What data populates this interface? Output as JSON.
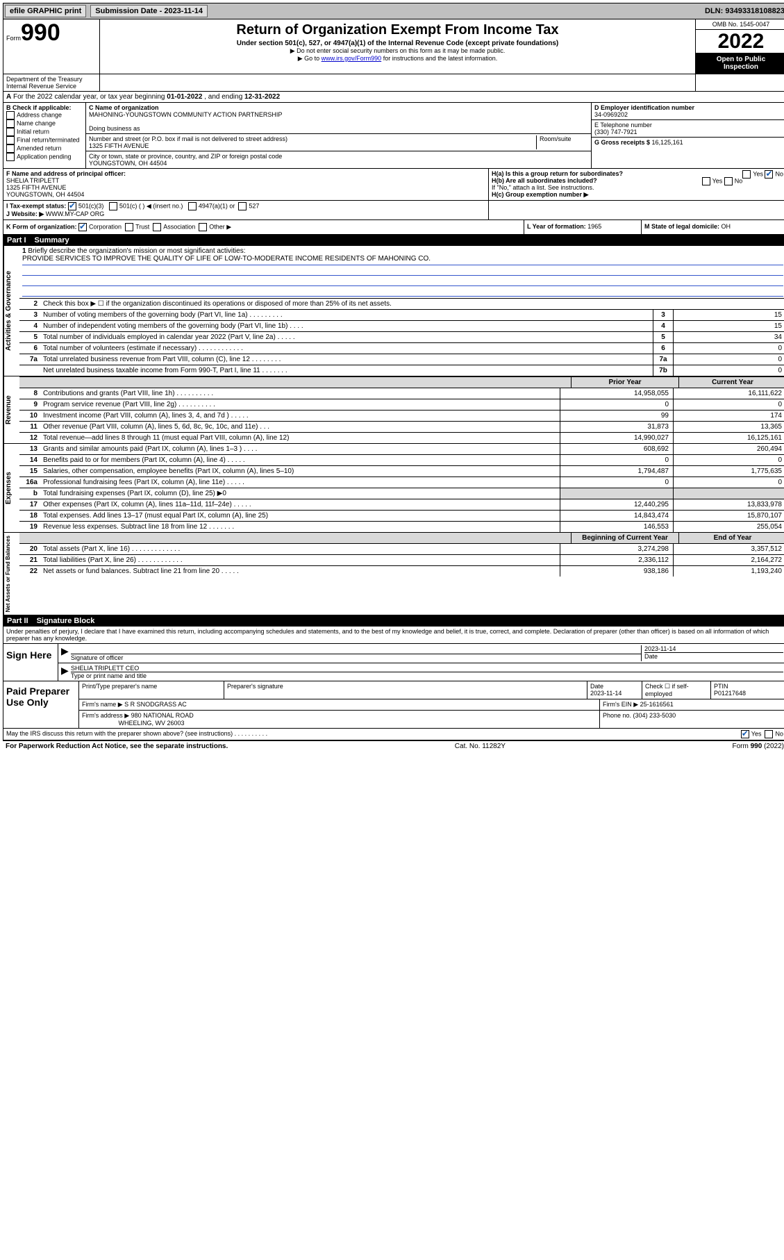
{
  "topbar": {
    "efile": "efile GRAPHIC print",
    "submission_label": "Submission Date - ",
    "submission_date": "2023-11-14",
    "dln_label": "DLN: ",
    "dln": "93493318108823"
  },
  "header": {
    "form_word": "Form",
    "form_number": "990",
    "title": "Return of Organization Exempt From Income Tax",
    "subtitle": "Under section 501(c), 527, or 4947(a)(1) of the Internal Revenue Code (except private foundations)",
    "note1": "▶ Do not enter social security numbers on this form as it may be made public.",
    "note2_pre": "▶ Go to ",
    "note2_link": "www.irs.gov/Form990",
    "note2_post": " for instructions and the latest information.",
    "omb": "OMB No. 1545-0047",
    "year": "2022",
    "open_public": "Open to Public Inspection",
    "dept": "Department of the Treasury",
    "irs": "Internal Revenue Service"
  },
  "section_a": {
    "label": "A",
    "text_pre": "For the 2022 calendar year, or tax year beginning ",
    "date1": "01-01-2022",
    "text_mid": ", and ending ",
    "date2": "12-31-2022"
  },
  "section_b": {
    "label": "B Check if applicable:",
    "items": [
      "Address change",
      "Name change",
      "Initial return",
      "Final return/terminated",
      "Amended return",
      "Application pending"
    ]
  },
  "section_c": {
    "name_label": "C Name of organization",
    "name": "MAHONING-YOUNGSTOWN COMMUNITY ACTION PARTNERSHIP",
    "dba_label": "Doing business as",
    "street_label": "Number and street (or P.O. box if mail is not delivered to street address)",
    "room_label": "Room/suite",
    "street": "1325 FIFTH AVENUE",
    "city_label": "City or town, state or province, country, and ZIP or foreign postal code",
    "city": "YOUNGSTOWN, OH  44504"
  },
  "section_d": {
    "label": "D Employer identification number",
    "ein": "34-0969202",
    "e_label": "E Telephone number",
    "phone": "(330) 747-7921",
    "g_label": "G Gross receipts $ ",
    "gross": "16,125,161"
  },
  "section_f": {
    "label": "F Name and address of principal officer:",
    "name": "SHELIA TRIPLETT",
    "addr1": "1325 FIFTH AVENUE",
    "addr2": "YOUNGSTOWN, OH  44504"
  },
  "section_h": {
    "ha": "H(a)  Is this a group return for subordinates?",
    "hb": "H(b)  Are all subordinates included?",
    "hb_note": "If \"No,\" attach a list. See instructions.",
    "hc": "H(c)  Group exemption number ▶",
    "yes": "Yes",
    "no": "No"
  },
  "section_i": {
    "label": "I   Tax-exempt status:",
    "opt1": "501(c)(3)",
    "opt2": "501(c) (   ) ◀ (insert no.)",
    "opt3": "4947(a)(1) or",
    "opt4": "527"
  },
  "section_j": {
    "label": "J   Website: ▶",
    "value": "WWW.MY-CAP ORG"
  },
  "section_k": {
    "label": "K Form of organization:",
    "opts": [
      "Corporation",
      "Trust",
      "Association",
      "Other ▶"
    ],
    "l_label": "L Year of formation: ",
    "l_val": "1965",
    "m_label": "M State of legal domicile: ",
    "m_val": "OH"
  },
  "part1": {
    "label": "Part I",
    "title": "Summary"
  },
  "summary": {
    "vert_labels": [
      "Activities & Governance",
      "Revenue",
      "Expenses",
      "Net Assets or Fund Balances"
    ],
    "line1_label": "Briefly describe the organization's mission or most significant activities:",
    "line1_text": "PROVIDE SERVICES TO IMPROVE THE QUALITY OF LIFE OF LOW-TO-MODERATE INCOME RESIDENTS OF MAHONING CO.",
    "line2": "Check this box ▶ ☐  if the organization discontinued its operations or disposed of more than 25% of its net assets.",
    "rows_gov": [
      {
        "n": "3",
        "t": "Number of voting members of the governing body (Part VI, line 1a)  .   .   .   .   .   .   .   .   .",
        "box": "3",
        "v": "15"
      },
      {
        "n": "4",
        "t": "Number of independent voting members of the governing body (Part VI, line 1b)   .   .   .   .",
        "box": "4",
        "v": "15"
      },
      {
        "n": "5",
        "t": "Total number of individuals employed in calendar year 2022 (Part V, line 2a)    .   .   .   .   .",
        "box": "5",
        "v": "34"
      },
      {
        "n": "6",
        "t": "Total number of volunteers (estimate if necessary)    .   .   .   .   .   .   .   .   .   .   .   .",
        "box": "6",
        "v": "0"
      },
      {
        "n": "7a",
        "t": "Total unrelated business revenue from Part VIII, column (C), line 12  .   .   .   .   .   .   .   .",
        "box": "7a",
        "v": "0"
      },
      {
        "n": "",
        "t": "Net unrelated business taxable income from Form 990-T, Part I, line 11   .   .   .   .   .   .   .",
        "box": "7b",
        "v": "0"
      }
    ],
    "prior_label": "Prior Year",
    "current_label": "Current Year",
    "rows_rev": [
      {
        "n": "8",
        "t": "Contributions and grants (Part VIII, line 1h)   .   .   .   .   .   .   .   .   .   .",
        "p": "14,958,055",
        "c": "16,111,622"
      },
      {
        "n": "9",
        "t": "Program service revenue (Part VIII, line 2g)    .   .   .   .   .   .   .   .   .   .",
        "p": "0",
        "c": "0"
      },
      {
        "n": "10",
        "t": "Investment income (Part VIII, column (A), lines 3, 4, and 7d )   .   .   .   .   .",
        "p": "99",
        "c": "174"
      },
      {
        "n": "11",
        "t": "Other revenue (Part VIII, column (A), lines 5, 6d, 8c, 9c, 10c, and 11e)   .   .   .",
        "p": "31,873",
        "c": "13,365"
      },
      {
        "n": "12",
        "t": "Total revenue—add lines 8 through 11 (must equal Part VIII, column (A), line 12)",
        "p": "14,990,027",
        "c": "16,125,161"
      }
    ],
    "rows_exp": [
      {
        "n": "13",
        "t": "Grants and similar amounts paid (Part IX, column (A), lines 1–3 )   .   .   .   .",
        "p": "608,692",
        "c": "260,494"
      },
      {
        "n": "14",
        "t": "Benefits paid to or for members (Part IX, column (A), line 4)   .   .   .   .   .",
        "p": "0",
        "c": "0"
      },
      {
        "n": "15",
        "t": "Salaries, other compensation, employee benefits (Part IX, column (A), lines 5–10)",
        "p": "1,794,487",
        "c": "1,775,635"
      },
      {
        "n": "16a",
        "t": "Professional fundraising fees (Part IX, column (A), line 11e)   .   .   .   .   .",
        "p": "0",
        "c": "0"
      },
      {
        "n": "b",
        "t": "Total fundraising expenses (Part IX, column (D), line 25) ▶0",
        "p": "",
        "c": "",
        "shade": true
      },
      {
        "n": "17",
        "t": "Other expenses (Part IX, column (A), lines 11a–11d, 11f–24e)   .   .   .   .   .",
        "p": "12,440,295",
        "c": "13,833,978"
      },
      {
        "n": "18",
        "t": "Total expenses. Add lines 13–17 (must equal Part IX, column (A), line 25)",
        "p": "14,843,474",
        "c": "15,870,107"
      },
      {
        "n": "19",
        "t": "Revenue less expenses. Subtract line 18 from line 12   .   .   .   .   .   .   .",
        "p": "146,553",
        "c": "255,054"
      }
    ],
    "begin_label": "Beginning of Current Year",
    "end_label": "End of Year",
    "rows_net": [
      {
        "n": "20",
        "t": "Total assets (Part X, line 16)   .   .   .   .   .   .   .   .   .   .   .   .   .",
        "p": "3,274,298",
        "c": "3,357,512"
      },
      {
        "n": "21",
        "t": "Total liabilities (Part X, line 26)   .   .   .   .   .   .   .   .   .   .   .   .",
        "p": "2,336,112",
        "c": "2,164,272"
      },
      {
        "n": "22",
        "t": "Net assets or fund balances. Subtract line 21 from line 20   .   .   .   .   .",
        "p": "938,186",
        "c": "1,193,240"
      }
    ]
  },
  "part2": {
    "label": "Part II",
    "title": "Signature Block",
    "declaration": "Under penalties of perjury, I declare that I have examined this return, including accompanying schedules and statements, and to the best of my knowledge and belief, it is true, correct, and complete. Declaration of preparer (other than officer) is based on all information of which preparer has any knowledge.",
    "sign_here": "Sign Here",
    "sig_officer": "Signature of officer",
    "sig_date": "2023-11-14",
    "date_label": "Date",
    "officer_name": "SHELIA TRIPLETT CEO",
    "type_name": "Type or print name and title",
    "paid_preparer": "Paid Preparer Use Only",
    "prep_name_label": "Print/Type preparer's name",
    "prep_sig_label": "Preparer's signature",
    "prep_date_label": "Date",
    "prep_date": "2023-11-14",
    "check_if": "Check ☐ if self-employed",
    "ptin_label": "PTIN",
    "ptin": "P01217648",
    "firm_name_label": "Firm's name    ▶",
    "firm_name": "S R SNODGRASS AC",
    "firm_ein_label": "Firm's EIN ▶",
    "firm_ein": "25-1616561",
    "firm_addr_label": "Firm's address ▶",
    "firm_addr1": "980 NATIONAL ROAD",
    "firm_addr2": "WHEELING, WV 26003",
    "firm_phone_label": "Phone no. ",
    "firm_phone": "(304) 233-5030",
    "may_irs": "May the IRS discuss this return with the preparer shown above? (see instructions)   .   .   .   .   .   .   .   .   .   .",
    "may_yes": "Yes",
    "may_no": "No"
  },
  "footer": {
    "left": "For Paperwork Reduction Act Notice, see the separate instructions.",
    "mid": "Cat. No. 11282Y",
    "right": "Form 990 (2022)"
  }
}
